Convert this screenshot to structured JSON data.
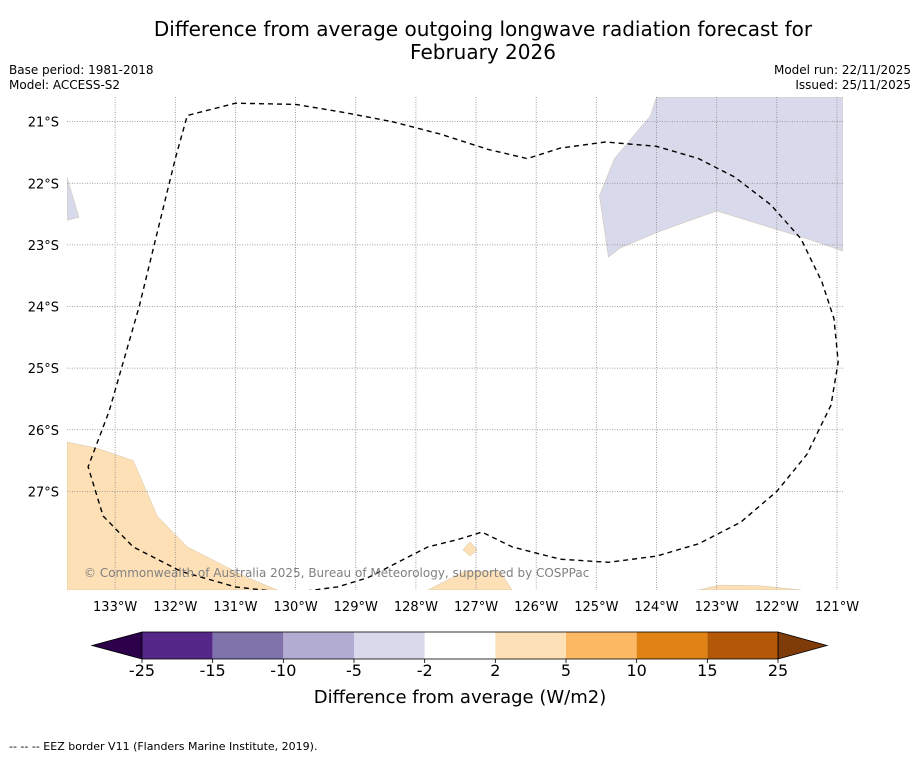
{
  "title_line1": "Difference from average outgoing longwave radiation forecast for",
  "title_line2": "February 2026",
  "meta": {
    "base_period": "Base period: 1981-2018",
    "model": "Model: ACCESS-S2",
    "model_run": "Model run: 22/11/2025",
    "issued": "Issued: 25/11/2025"
  },
  "copyright": "© Commonwealth of Australia 2025, Bureau of Meteorology, supported by COSPPac",
  "footer_note": "-- -- -- EEZ border V11 (Flanders Marine Institute, 2019).",
  "chart_data": {
    "type": "heatmap",
    "title": "Difference from average outgoing longwave radiation forecast for February 2026",
    "x_ticks": [
      "133°W",
      "132°W",
      "131°W",
      "130°W",
      "129°W",
      "128°W",
      "127°W",
      "126°W",
      "125°W",
      "124°W",
      "123°W",
      "122°W",
      "121°W"
    ],
    "y_ticks": [
      "21°S",
      "22°S",
      "23°S",
      "24°S",
      "25°S",
      "26°S",
      "27°S"
    ],
    "lon_range": [
      -133.8,
      -120.9
    ],
    "lat_range": [
      -28.6,
      -20.6
    ],
    "colorbar": {
      "label": "Difference from average (W/m2)",
      "ticks": [
        "-25",
        "-15",
        "-10",
        "-5",
        "-2",
        "2",
        "5",
        "10",
        "15",
        "25"
      ],
      "bins": [
        {
          "from": -25,
          "to": -15,
          "color": "#542788"
        },
        {
          "from": -15,
          "to": -10,
          "color": "#8073ac"
        },
        {
          "from": -10,
          "to": -5,
          "color": "#b2abd2"
        },
        {
          "from": -5,
          "to": -2,
          "color": "#d8daeb"
        },
        {
          "from": -2,
          "to": 2,
          "color": "#ffffff"
        },
        {
          "from": 2,
          "to": 5,
          "color": "#fee0b6"
        },
        {
          "from": 5,
          "to": 10,
          "color": "#fdb863"
        },
        {
          "from": 10,
          "to": 15,
          "color": "#e08214"
        },
        {
          "from": 15,
          "to": 25,
          "color": "#b35806"
        }
      ],
      "under_color": "#2d004b",
      "over_color": "#7f3b08"
    },
    "regions": [
      {
        "name": "negative-anomaly-east",
        "category": "-5 to -2",
        "color": "#d8daeb",
        "polygon": [
          [
            -124.0,
            -20.6
          ],
          [
            -120.9,
            -20.6
          ],
          [
            -120.9,
            -23.1
          ],
          [
            -121.5,
            -22.9
          ],
          [
            -122.5,
            -22.6
          ],
          [
            -123.0,
            -22.45
          ],
          [
            -124.0,
            -22.8
          ],
          [
            -124.6,
            -23.05
          ],
          [
            -124.8,
            -23.2
          ],
          [
            -124.95,
            -22.2
          ],
          [
            -124.7,
            -21.6
          ],
          [
            -124.1,
            -20.9
          ]
        ]
      },
      {
        "name": "negative-anomaly-west",
        "category": "-5 to -2",
        "color": "#d8daeb",
        "polygon": [
          [
            -133.8,
            -21.9
          ],
          [
            -133.6,
            -22.55
          ],
          [
            -133.8,
            -22.6
          ]
        ]
      },
      {
        "name": "positive-anomaly-southwest",
        "category": "2 to 5",
        "color": "#fee0b6",
        "polygon": [
          [
            -133.8,
            -26.2
          ],
          [
            -133.3,
            -26.3
          ],
          [
            -132.7,
            -26.5
          ],
          [
            -132.3,
            -27.4
          ],
          [
            -131.8,
            -27.9
          ],
          [
            -130.8,
            -28.4
          ],
          [
            -130.3,
            -28.6
          ],
          [
            -133.8,
            -28.6
          ]
        ]
      },
      {
        "name": "positive-anomaly-south-center",
        "category": "2 to 5",
        "color": "#fee0b6",
        "polygon": [
          [
            -127.8,
            -28.6
          ],
          [
            -127.2,
            -28.3
          ],
          [
            -126.6,
            -28.3
          ],
          [
            -126.4,
            -28.6
          ]
        ]
      },
      {
        "name": "positive-anomaly-small-patch",
        "category": "2 to 5",
        "color": "#fee0b6",
        "polygon": [
          [
            -127.1,
            -27.82
          ],
          [
            -126.98,
            -27.95
          ],
          [
            -127.1,
            -28.05
          ],
          [
            -127.22,
            -27.95
          ]
        ]
      },
      {
        "name": "positive-anomaly-southeast",
        "category": "2 to 5",
        "color": "#fee0b6",
        "polygon": [
          [
            -123.3,
            -28.6
          ],
          [
            -122.95,
            -28.52
          ],
          [
            -122.3,
            -28.53
          ],
          [
            -121.6,
            -28.6
          ]
        ]
      }
    ],
    "eez_border": [
      [
        -128.4,
        -21.0
      ],
      [
        -127.6,
        -21.2
      ],
      [
        -126.8,
        -21.45
      ],
      [
        -126.15,
        -21.6
      ],
      [
        -125.6,
        -21.43
      ],
      [
        -124.85,
        -21.33
      ],
      [
        -124.0,
        -21.4
      ],
      [
        -123.3,
        -21.6
      ],
      [
        -122.7,
        -21.9
      ],
      [
        -122.1,
        -22.35
      ],
      [
        -121.6,
        -22.9
      ],
      [
        -121.25,
        -23.6
      ],
      [
        -121.05,
        -24.2
      ],
      [
        -120.98,
        -24.9
      ],
      [
        -121.1,
        -25.6
      ],
      [
        -121.5,
        -26.4
      ],
      [
        -122.0,
        -27.0
      ],
      [
        -122.6,
        -27.5
      ],
      [
        -123.3,
        -27.85
      ],
      [
        -124.0,
        -28.05
      ],
      [
        -124.8,
        -28.15
      ],
      [
        -125.6,
        -28.1
      ],
      [
        -126.4,
        -27.9
      ],
      [
        -126.9,
        -27.66
      ],
      [
        -127.3,
        -27.78
      ],
      [
        -127.8,
        -27.9
      ],
      [
        -128.3,
        -28.15
      ],
      [
        -128.8,
        -28.4
      ],
      [
        -129.3,
        -28.55
      ],
      [
        -130.1,
        -28.65
      ],
      [
        -131.0,
        -28.55
      ],
      [
        -131.9,
        -28.3
      ],
      [
        -132.7,
        -27.9
      ],
      [
        -133.2,
        -27.4
      ],
      [
        -133.45,
        -26.6
      ],
      [
        -133.1,
        -25.7
      ],
      [
        -132.6,
        -24.0
      ],
      [
        -132.3,
        -22.8
      ],
      [
        -132.0,
        -21.6
      ],
      [
        -131.8,
        -20.9
      ],
      [
        -131.0,
        -20.7
      ],
      [
        -130.0,
        -20.72
      ],
      [
        -129.2,
        -20.85
      ],
      [
        -128.4,
        -21.0
      ]
    ]
  }
}
